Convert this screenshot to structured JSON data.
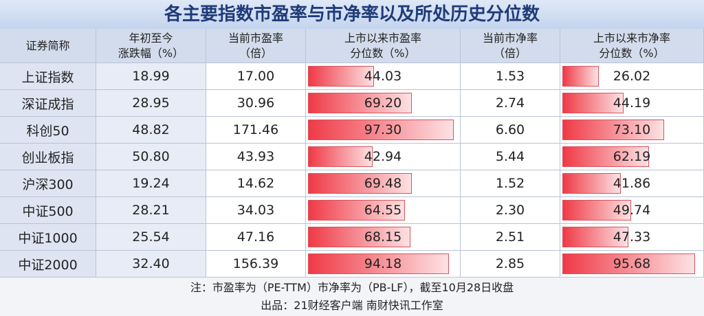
{
  "title": "各主要指数市盈率与市净率以及所处历史分位数",
  "table": {
    "headers": [
      [
        "证券简称"
      ],
      [
        "年初至今",
        "涨跌幅（%）"
      ],
      [
        "当前市盈率",
        "（倍）"
      ],
      [
        "上市以来市盈率",
        "分位数（%）"
      ],
      [
        "当前市净率",
        "（倍）"
      ],
      [
        "上市以来市净率",
        "分位数（%）"
      ]
    ],
    "rows": [
      [
        "上证指数",
        "18.99",
        "17.00",
        "44.03",
        "1.53",
        "26.02"
      ],
      [
        "深证成指",
        "28.95",
        "30.96",
        "69.20",
        "2.74",
        "44.19"
      ],
      [
        "科创50",
        "48.82",
        "171.46",
        "97.30",
        "6.60",
        "73.10"
      ],
      [
        "创业板指",
        "50.80",
        "43.93",
        "42.94",
        "5.44",
        "62.19"
      ],
      [
        "沪深300",
        "19.24",
        "14.62",
        "69.48",
        "1.52",
        "41.86"
      ],
      [
        "中证500",
        "28.21",
        "34.03",
        "64.55",
        "2.30",
        "49.74"
      ],
      [
        "中证1000",
        "25.54",
        "47.16",
        "68.15",
        "2.51",
        "47.33"
      ],
      [
        "中证2000",
        "32.40",
        "156.39",
        "94.18",
        "2.85",
        "95.68"
      ]
    ]
  },
  "notes": [
    "注：市盈率为（PE-TTM）市净率为（PB-LF），截至10月28日收盘",
    "出品：21财经客户端 南财快讯工作室"
  ]
}
